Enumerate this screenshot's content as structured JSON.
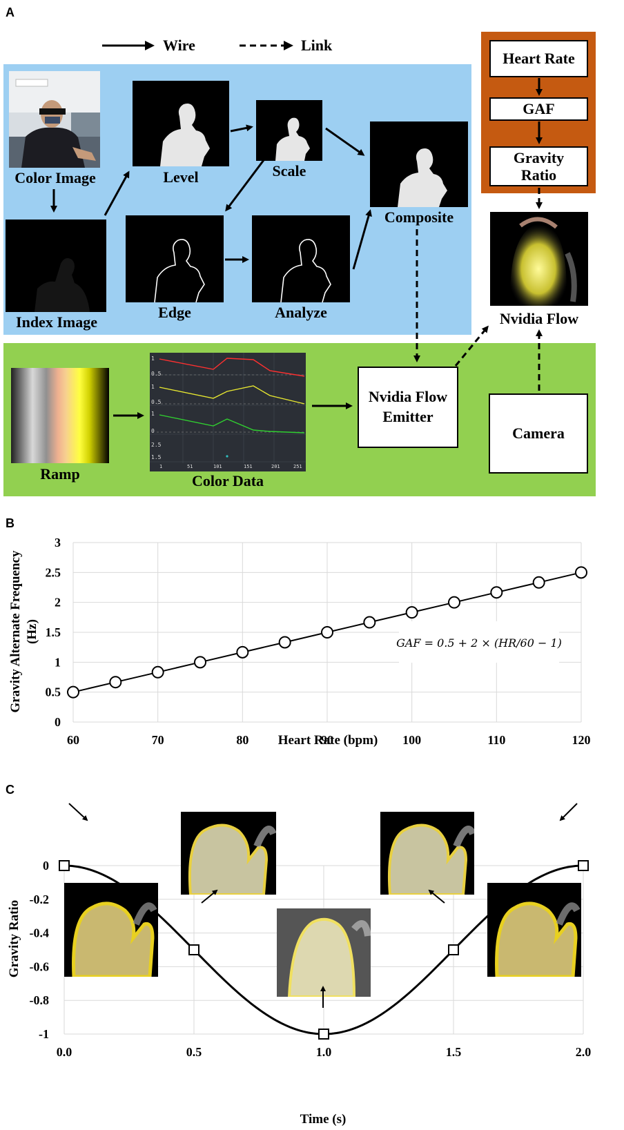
{
  "panels": {
    "a": "A",
    "b": "B",
    "c": "C"
  },
  "legend": {
    "wire": "Wire",
    "link": "Link"
  },
  "nodes": {
    "color_image": "Color Image",
    "index_image": "Index Image",
    "level": "Level",
    "scale": "Scale",
    "composite": "Composite",
    "edge": "Edge",
    "analyze": "Analyze",
    "ramp": "Ramp",
    "color_data": "Color Data",
    "emitter_line1": "Nvidia Flow",
    "emitter_line2": "Emitter",
    "camera": "Camera",
    "nvidia_flow": "Nvidia Flow",
    "heart_rate": "Heart Rate",
    "gaf": "GAF",
    "gravity_ratio_line1": "Gravity",
    "gravity_ratio_line2": "Ratio"
  },
  "colors": {
    "blue_region": "#9dcff2",
    "green_region": "#92d050",
    "orange_region": "#c55a11",
    "color_data_red": "#ff3030",
    "color_data_yellow": "#e8e830",
    "color_data_green": "#30d030"
  },
  "color_data_ticks": [
    "1",
    "51",
    "101",
    "151",
    "201",
    "251"
  ],
  "chart_data": [
    {
      "type": "line",
      "xlabel": "Heart Rate (bpm)",
      "ylabel_line1": "Gravity Alternate Frequency",
      "ylabel_line2": "(Hz)",
      "formula": "GAF = 0.5 + 2 × (HR/60 − 1)",
      "xlim": [
        60,
        120
      ],
      "ylim": [
        0,
        3
      ],
      "xticks": [
        "60",
        "70",
        "80",
        "90",
        "100",
        "110",
        "120"
      ],
      "yticks": [
        "0",
        "0.5",
        "1",
        "1.5",
        "2",
        "2.5",
        "3"
      ],
      "grid": true,
      "marker": "circle",
      "x": [
        60,
        65,
        70,
        75,
        80,
        85,
        90,
        95,
        100,
        105,
        110,
        115,
        120
      ],
      "y": [
        0.5,
        0.667,
        0.833,
        1.0,
        1.167,
        1.333,
        1.5,
        1.667,
        1.833,
        2.0,
        2.167,
        2.333,
        2.5
      ]
    },
    {
      "type": "line",
      "xlabel": "Time (s)",
      "ylabel": "Gravity Ratio",
      "xlim": [
        0,
        2
      ],
      "ylim": [
        -1,
        0
      ],
      "xticks": [
        "0.0",
        "0.5",
        "1.0",
        "1.5",
        "2.0"
      ],
      "yticks": [
        "0",
        "-0.2",
        "-0.4",
        "-0.6",
        "-0.8",
        "-1"
      ],
      "grid": true,
      "marker": "square",
      "curve": "-(1 - cos(pi*t))/2",
      "x": [
        0.0,
        0.5,
        1.0,
        1.5,
        2.0
      ],
      "y": [
        0,
        -0.5,
        -1,
        -0.5,
        0
      ]
    }
  ]
}
